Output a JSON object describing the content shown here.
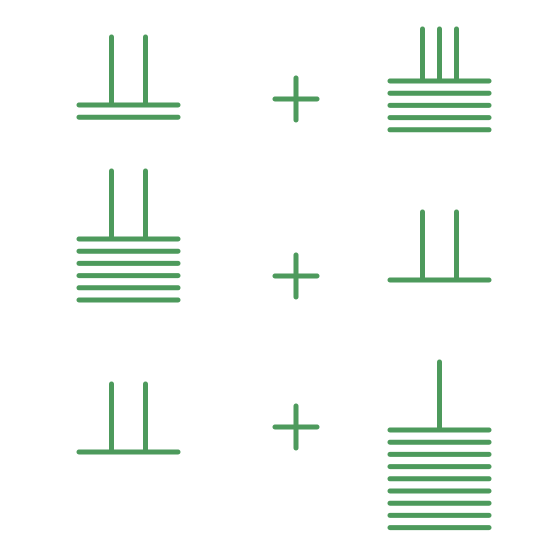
{
  "colors": {
    "stroke": "#4d9a5c",
    "background": "#ffffff"
  },
  "equations": [
    {
      "left": {
        "tens": 2,
        "ones": 2
      },
      "operator": "plus",
      "right": {
        "tens": 3,
        "ones": 5
      }
    },
    {
      "left": {
        "tens": 2,
        "ones": 6
      },
      "operator": "plus",
      "right": {
        "tens": 2,
        "ones": 1
      }
    },
    {
      "left": {
        "tens": 2,
        "ones": 1
      },
      "operator": "plus",
      "right": {
        "tens": 1,
        "ones": 9
      }
    }
  ]
}
